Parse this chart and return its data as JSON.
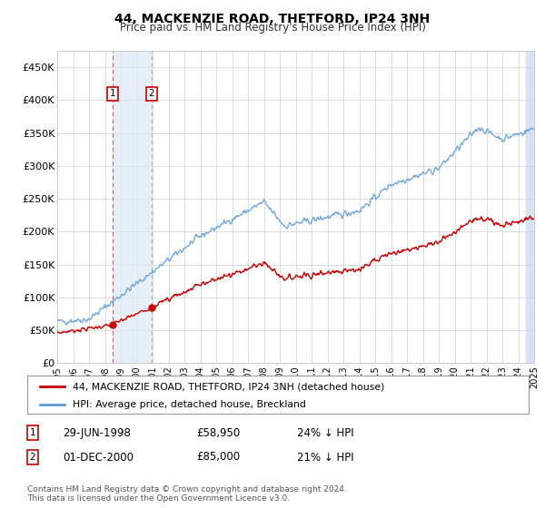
{
  "title": "44, MACKENZIE ROAD, THETFORD, IP24 3NH",
  "subtitle": "Price paid vs. HM Land Registry's House Price Index (HPI)",
  "legend_line1": "44, MACKENZIE ROAD, THETFORD, IP24 3NH (detached house)",
  "legend_line2": "HPI: Average price, detached house, Breckland",
  "footnote": "Contains HM Land Registry data © Crown copyright and database right 2024.\nThis data is licensed under the Open Government Licence v3.0.",
  "red_color": "#cc0000",
  "blue_color": "#5b9bd5",
  "shade_color": "#dce9f5",
  "purchase1_date": 1998.49,
  "purchase1_price": 58950,
  "purchase2_date": 2000.92,
  "purchase2_price": 85000,
  "ylim": [
    0,
    475000
  ],
  "yticks": [
    0,
    50000,
    100000,
    150000,
    200000,
    250000,
    300000,
    350000,
    400000,
    450000
  ],
  "ytick_labels": [
    "£0",
    "£50K",
    "£100K",
    "£150K",
    "£200K",
    "£250K",
    "£300K",
    "£350K",
    "£400K",
    "£450K"
  ],
  "xmin": 1995,
  "xmax": 2025
}
